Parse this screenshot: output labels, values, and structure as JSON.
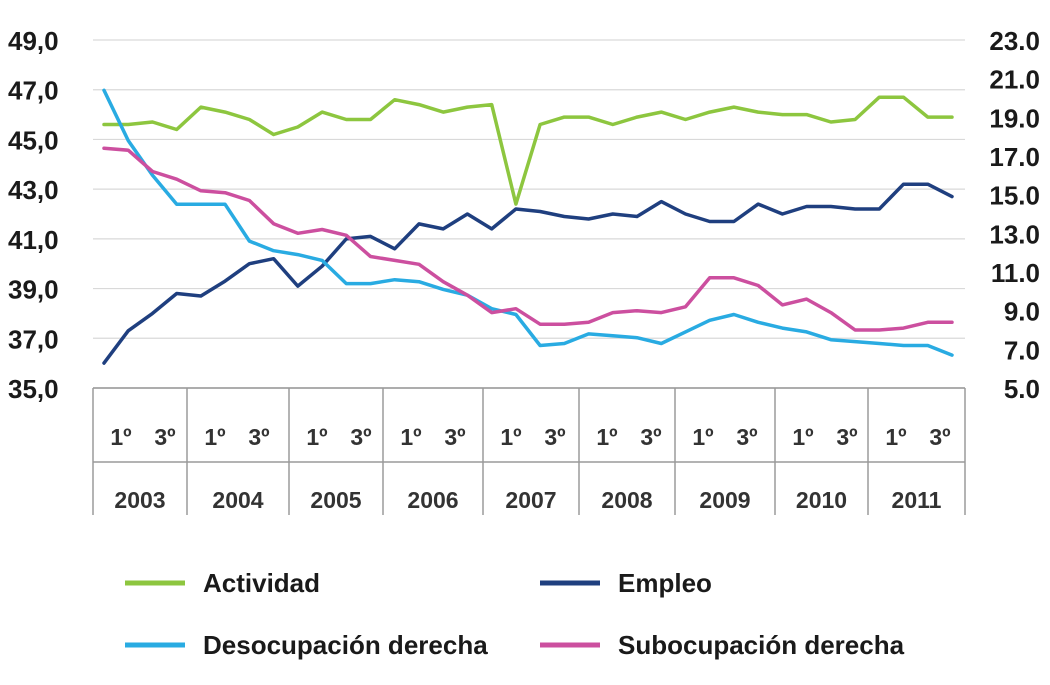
{
  "chart_data": {
    "type": "line",
    "title": "",
    "xlabel": "",
    "ylabel_left": "",
    "ylabel_right": "",
    "quarter_labels": [
      "1º",
      "3º"
    ],
    "years": [
      "2003",
      "2004",
      "2005",
      "2006",
      "2007",
      "2008",
      "2009",
      "2010",
      "2011"
    ],
    "x": [
      "2003-Q1",
      "2003-Q2",
      "2003-Q3",
      "2003-Q4",
      "2004-Q1",
      "2004-Q2",
      "2004-Q3",
      "2004-Q4",
      "2005-Q1",
      "2005-Q2",
      "2005-Q3",
      "2005-Q4",
      "2006-Q1",
      "2006-Q2",
      "2006-Q3",
      "2006-Q4",
      "2007-Q1",
      "2007-Q2",
      "2007-Q3",
      "2007-Q4",
      "2008-Q1",
      "2008-Q2",
      "2008-Q3",
      "2008-Q4",
      "2009-Q1",
      "2009-Q2",
      "2009-Q3",
      "2009-Q4",
      "2010-Q1",
      "2010-Q2",
      "2010-Q3",
      "2010-Q4",
      "2011-Q1",
      "2011-Q2",
      "2011-Q3",
      "2011-Q4"
    ],
    "yaxis_left": {
      "min": 35.0,
      "max": 49.0,
      "ticks": [
        "35,0",
        "37,0",
        "39,0",
        "41,0",
        "43,0",
        "45,0",
        "47,0",
        "49,0"
      ]
    },
    "yaxis_right": {
      "min": 5.0,
      "max": 23.0,
      "ticks": [
        "5.0",
        "7.0",
        "9.0",
        "11.0",
        "13.0",
        "15.0",
        "17.0",
        "19.0",
        "21.0",
        "23.0"
      ]
    },
    "grid": "horizontal",
    "legend_position": "bottom",
    "series": [
      {
        "name": "Actividad",
        "axis": "left",
        "color": "#8dc63f",
        "values": [
          45.6,
          45.6,
          45.7,
          45.4,
          46.3,
          46.1,
          45.8,
          45.2,
          45.5,
          46.1,
          45.8,
          45.8,
          46.6,
          46.4,
          46.1,
          46.3,
          46.4,
          42.4,
          45.6,
          45.9,
          45.9,
          45.6,
          45.9,
          46.1,
          45.8,
          46.1,
          46.3,
          46.1,
          46.0,
          46.0,
          45.7,
          45.8,
          46.7,
          46.7,
          45.9,
          45.9
        ]
      },
      {
        "name": "Empleo",
        "axis": "left",
        "color": "#1f3f7f",
        "values": [
          36.0,
          37.3,
          38.0,
          38.8,
          38.7,
          39.3,
          40.0,
          40.2,
          39.1,
          39.9,
          41.0,
          41.1,
          40.6,
          41.6,
          41.4,
          42.0,
          41.4,
          42.2,
          42.1,
          41.9,
          41.8,
          42.0,
          41.9,
          42.5,
          42.0,
          41.7,
          41.7,
          42.4,
          42.0,
          42.3,
          42.3,
          42.2,
          42.2,
          43.2,
          43.2,
          42.7
        ]
      },
      {
        "name": "Desocupación derecha",
        "axis": "right",
        "color": "#29abe2",
        "values": [
          20.4,
          17.8,
          16.0,
          14.5,
          14.5,
          14.5,
          12.6,
          12.1,
          11.9,
          11.6,
          10.4,
          10.4,
          10.6,
          10.5,
          10.1,
          9.8,
          9.1,
          8.8,
          7.2,
          7.3,
          7.8,
          7.7,
          7.6,
          7.3,
          7.9,
          8.5,
          8.8,
          8.4,
          8.1,
          7.9,
          7.5,
          7.4,
          7.3,
          7.2,
          7.2,
          6.7
        ]
      },
      {
        "name": "Subocupación derecha",
        "axis": "right",
        "color": "#cc4f9f",
        "values": [
          17.4,
          17.3,
          16.2,
          15.8,
          15.2,
          15.1,
          14.7,
          13.5,
          13.0,
          13.2,
          12.9,
          11.8,
          11.6,
          11.4,
          10.5,
          9.8,
          8.9,
          9.1,
          8.3,
          8.3,
          8.4,
          8.9,
          9.0,
          8.9,
          9.2,
          10.7,
          10.7,
          10.3,
          9.3,
          9.6,
          8.9,
          8.0,
          8.0,
          8.1,
          8.4,
          8.4
        ]
      }
    ]
  }
}
